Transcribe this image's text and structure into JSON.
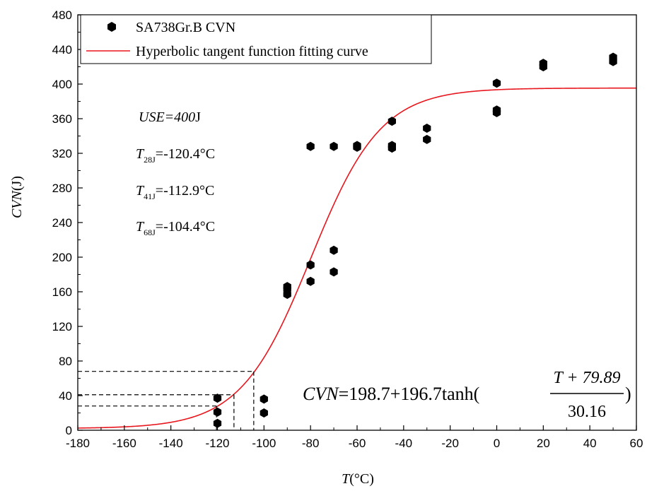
{
  "chart_data": {
    "type": "scatter",
    "xlabel_var": "T",
    "xlabel_unit": "(°C)",
    "ylabel_var": "CVN",
    "ylabel_unit": "(J)",
    "xlim": [
      -180,
      60
    ],
    "ylim": [
      0,
      480
    ],
    "xticks": [
      -180,
      -160,
      -140,
      -120,
      -100,
      -80,
      -60,
      -40,
      -20,
      0,
      20,
      40,
      60
    ],
    "yticks": [
      0,
      40,
      80,
      120,
      160,
      200,
      240,
      280,
      320,
      360,
      400,
      440,
      480
    ],
    "grid": false,
    "legend_position": "top-left",
    "series": [
      {
        "name": "SA738Gr.B  CVN",
        "type": "scatter",
        "color": "#000000",
        "points": [
          [
            -120,
            8
          ],
          [
            -120,
            21
          ],
          [
            -120,
            37
          ],
          [
            -100,
            20
          ],
          [
            -100,
            36
          ],
          [
            -90,
            157
          ],
          [
            -90,
            163
          ],
          [
            -90,
            166
          ],
          [
            -80,
            172
          ],
          [
            -80,
            191
          ],
          [
            -80,
            328
          ],
          [
            -70,
            183
          ],
          [
            -70,
            208
          ],
          [
            -70,
            328
          ],
          [
            -60,
            327
          ],
          [
            -60,
            329
          ],
          [
            -45,
            326
          ],
          [
            -45,
            329
          ],
          [
            -45,
            357
          ],
          [
            -30,
            336
          ],
          [
            -30,
            349
          ],
          [
            0,
            367
          ],
          [
            0,
            370
          ],
          [
            0,
            401
          ],
          [
            20,
            420
          ],
          [
            20,
            424
          ],
          [
            50,
            426
          ],
          [
            50,
            431
          ]
        ]
      },
      {
        "name": "Hyperbolic tangent function fitting curve",
        "type": "line",
        "color": "#e8161d",
        "function": {
          "A": 198.7,
          "B": 196.7,
          "T0": -79.89,
          "C": 30.16
        }
      }
    ],
    "reference_lines": [
      {
        "y": 28,
        "x": -120.4
      },
      {
        "y": 41,
        "x": -112.9
      },
      {
        "y": 68,
        "x": -104.4
      }
    ],
    "annotations": {
      "use": {
        "var": "USE",
        "eq": "=",
        "val": "400",
        "unit": "J"
      },
      "t28": {
        "var": "T",
        "sub": "28J",
        "text": "=-120.4°C"
      },
      "t41": {
        "var": "T",
        "sub": "41J",
        "text": "=-112.9°C"
      },
      "t68": {
        "var": "T",
        "sub": "68J",
        "text": "=-104.4°C"
      },
      "equation": {
        "lhs_var": "CVN",
        "rhs": "=198.7+196.7tanh(",
        "numerator": "T + 79.89",
        "denominator": "30.16",
        "close": ")"
      }
    }
  }
}
